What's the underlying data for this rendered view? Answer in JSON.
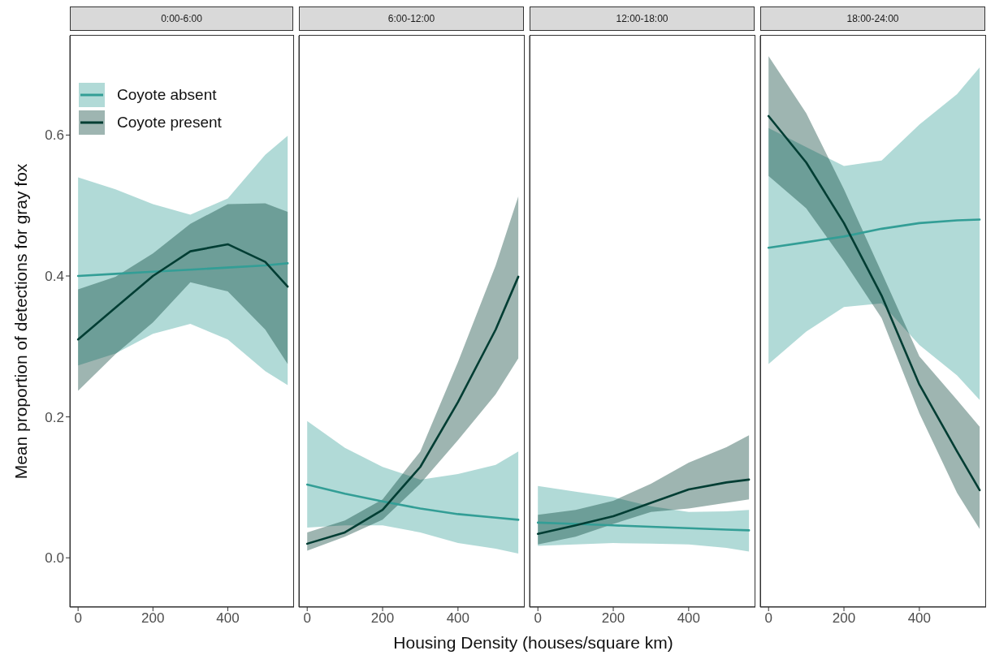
{
  "chart_data": [
    {
      "type": "line",
      "title": "0:00-6:00",
      "ylabel": "Mean proportion of detections for gray fox",
      "legend": "top left",
      "x": [
        0,
        100,
        200,
        300,
        400,
        500,
        560
      ],
      "xlim": [
        -22,
        577
      ],
      "xticks": [
        0,
        200,
        400
      ],
      "ylim": [
        -0.07,
        0.741
      ],
      "yticks": [
        {
          "value": 0,
          "label": "0.0"
        },
        {
          "value": 0.2,
          "label": "0.2"
        },
        {
          "value": 0.4,
          "label": "0.4"
        },
        {
          "value": 0.6,
          "label": "0.6"
        }
      ],
      "grid": false,
      "series": [
        {
          "name": "Coyote absent",
          "color": "#339e96",
          "values": [
            0.4,
            0.403,
            0.406,
            0.409,
            0.412,
            0.415,
            0.418
          ],
          "lower": [
            0.273,
            0.29,
            0.318,
            0.332,
            0.31,
            0.265,
            0.245
          ],
          "upper": [
            0.54,
            0.523,
            0.502,
            0.487,
            0.51,
            0.572,
            0.599
          ]
        },
        {
          "name": "Coyote present",
          "color": "#003d33",
          "values": [
            0.31,
            0.355,
            0.4,
            0.435,
            0.445,
            0.42,
            0.385
          ],
          "lower": [
            0.237,
            0.289,
            0.334,
            0.391,
            0.378,
            0.324,
            0.275
          ],
          "upper": [
            0.381,
            0.399,
            0.432,
            0.474,
            0.502,
            0.503,
            0.491
          ]
        }
      ]
    },
    {
      "type": "line",
      "title": "6:00-12:00",
      "xlabel": "Housing Density (houses/square km)",
      "x": [
        0,
        100,
        200,
        300,
        400,
        500,
        560
      ],
      "xlim": [
        -22,
        577
      ],
      "xticks": [
        0,
        200,
        400
      ],
      "ylim": [
        -0.07,
        0.741
      ],
      "tick_labels": "x",
      "grid": false,
      "series": [
        {
          "color": "#339e96",
          "values": [
            0.104,
            0.091,
            0.08,
            0.07,
            0.062,
            0.057,
            0.054
          ],
          "lower": [
            0.043,
            0.046,
            0.046,
            0.036,
            0.021,
            0.013,
            0.006
          ],
          "upper": [
            0.194,
            0.156,
            0.129,
            0.111,
            0.119,
            0.132,
            0.151
          ]
        },
        {
          "color": "#003d33",
          "values": [
            0.02,
            0.036,
            0.068,
            0.129,
            0.221,
            0.324,
            0.399
          ],
          "lower": [
            0.01,
            0.03,
            0.054,
            0.105,
            0.167,
            0.232,
            0.283
          ],
          "upper": [
            0.036,
            0.053,
            0.083,
            0.151,
            0.278,
            0.415,
            0.513
          ]
        }
      ]
    },
    {
      "type": "line",
      "title": "12:00-18:00",
      "x": [
        0,
        100,
        200,
        300,
        400,
        500,
        560
      ],
      "xlim": [
        -22,
        577
      ],
      "xticks": [
        0,
        200,
        400
      ],
      "ylim": [
        -0.07,
        0.741
      ],
      "tick_labels": "x",
      "grid": false,
      "series": [
        {
          "color": "#339e96",
          "values": [
            0.05,
            0.048,
            0.046,
            0.044,
            0.042,
            0.04,
            0.039
          ],
          "lower": [
            0.017,
            0.019,
            0.021,
            0.02,
            0.019,
            0.014,
            0.009
          ],
          "upper": [
            0.102,
            0.094,
            0.086,
            0.073,
            0.065,
            0.066,
            0.068
          ]
        },
        {
          "color": "#003d33",
          "values": [
            0.034,
            0.046,
            0.059,
            0.078,
            0.097,
            0.107,
            0.111
          ],
          "lower": [
            0.019,
            0.03,
            0.048,
            0.065,
            0.07,
            0.078,
            0.083
          ],
          "upper": [
            0.061,
            0.068,
            0.081,
            0.105,
            0.135,
            0.157,
            0.174
          ]
        }
      ]
    },
    {
      "type": "line",
      "title": "18:00-24:00",
      "x": [
        0,
        100,
        200,
        300,
        400,
        500,
        560
      ],
      "xlim": [
        -22,
        577
      ],
      "xticks": [
        0,
        200,
        400
      ],
      "ylim": [
        -0.07,
        0.741
      ],
      "tick_labels": "x",
      "grid": false,
      "series": [
        {
          "color": "#339e96",
          "values": [
            0.44,
            0.448,
            0.456,
            0.467,
            0.475,
            0.479,
            0.48
          ],
          "lower": [
            0.275,
            0.321,
            0.356,
            0.361,
            0.302,
            0.259,
            0.224
          ],
          "upper": [
            0.61,
            0.583,
            0.556,
            0.564,
            0.615,
            0.658,
            0.696
          ]
        },
        {
          "color": "#003d33",
          "values": [
            0.627,
            0.561,
            0.475,
            0.372,
            0.246,
            0.151,
            0.096
          ],
          "lower": [
            0.542,
            0.496,
            0.421,
            0.34,
            0.205,
            0.092,
            0.041
          ],
          "upper": [
            0.712,
            0.631,
            0.523,
            0.405,
            0.286,
            0.224,
            0.186
          ]
        }
      ]
    }
  ]
}
